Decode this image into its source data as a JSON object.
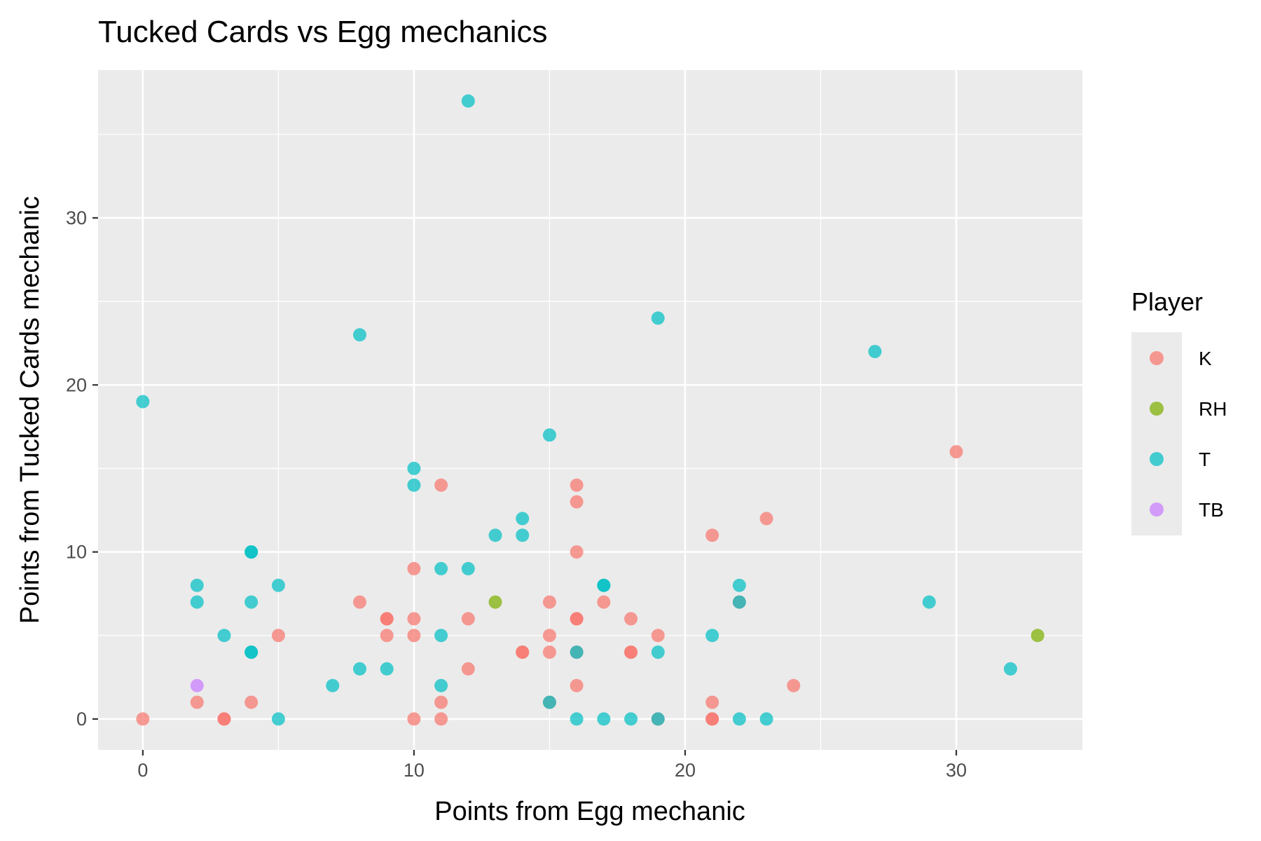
{
  "chart_data": {
    "type": "scatter",
    "title": "Tucked Cards vs Egg mechanics",
    "xlabel": "Points from Egg mechanic",
    "ylabel": "Points from Tucked Cards mechanic",
    "xlim": [
      -1.65,
      34.65
    ],
    "ylim": [
      -1.85,
      38.85
    ],
    "x_ticks": [
      0,
      10,
      20,
      30
    ],
    "y_ticks": [
      0,
      10,
      20,
      30
    ],
    "grid": true,
    "legend": {
      "title": "Player",
      "position": "right"
    },
    "series": [
      {
        "name": "K",
        "color": "#F8766D",
        "points": [
          [
            0,
            0
          ],
          [
            2,
            1
          ],
          [
            3,
            0
          ],
          [
            3,
            0
          ],
          [
            4,
            1
          ],
          [
            5,
            5
          ],
          [
            8,
            7
          ],
          [
            9,
            6
          ],
          [
            9,
            6
          ],
          [
            9,
            5
          ],
          [
            10,
            9
          ],
          [
            10,
            6
          ],
          [
            10,
            5
          ],
          [
            10,
            0
          ],
          [
            11,
            14
          ],
          [
            11,
            1
          ],
          [
            11,
            0
          ],
          [
            12,
            6
          ],
          [
            12,
            3
          ],
          [
            14,
            4
          ],
          [
            14,
            4
          ],
          [
            15,
            7
          ],
          [
            15,
            5
          ],
          [
            15,
            4
          ],
          [
            15,
            1
          ],
          [
            16,
            14
          ],
          [
            16,
            13
          ],
          [
            16,
            10
          ],
          [
            16,
            6
          ],
          [
            16,
            6
          ],
          [
            16,
            4
          ],
          [
            16,
            2
          ],
          [
            17,
            7
          ],
          [
            18,
            6
          ],
          [
            18,
            4
          ],
          [
            18,
            4
          ],
          [
            19,
            5
          ],
          [
            19,
            0
          ],
          [
            21,
            11
          ],
          [
            21,
            1
          ],
          [
            21,
            0
          ],
          [
            21,
            0
          ],
          [
            22,
            7
          ],
          [
            23,
            12
          ],
          [
            24,
            2
          ],
          [
            30,
            16
          ]
        ]
      },
      {
        "name": "RH",
        "color": "#7CAE00",
        "points": [
          [
            13,
            7
          ],
          [
            33,
            5
          ]
        ]
      },
      {
        "name": "T",
        "color": "#00BFC4",
        "points": [
          [
            0,
            19
          ],
          [
            2,
            8
          ],
          [
            2,
            7
          ],
          [
            3,
            5
          ],
          [
            4,
            10
          ],
          [
            4,
            10
          ],
          [
            4,
            7
          ],
          [
            4,
            4
          ],
          [
            4,
            4
          ],
          [
            5,
            8
          ],
          [
            5,
            0
          ],
          [
            7,
            2
          ],
          [
            8,
            23
          ],
          [
            8,
            3
          ],
          [
            9,
            3
          ],
          [
            10,
            15
          ],
          [
            10,
            14
          ],
          [
            11,
            9
          ],
          [
            11,
            5
          ],
          [
            11,
            2
          ],
          [
            12,
            37
          ],
          [
            12,
            9
          ],
          [
            13,
            11
          ],
          [
            14,
            12
          ],
          [
            14,
            11
          ],
          [
            15,
            17
          ],
          [
            15,
            1
          ],
          [
            16,
            4
          ],
          [
            16,
            0
          ],
          [
            17,
            8
          ],
          [
            17,
            8
          ],
          [
            17,
            0
          ],
          [
            18,
            0
          ],
          [
            19,
            24
          ],
          [
            19,
            4
          ],
          [
            19,
            0
          ],
          [
            21,
            5
          ],
          [
            22,
            8
          ],
          [
            22,
            7
          ],
          [
            22,
            0
          ],
          [
            23,
            0
          ],
          [
            27,
            22
          ],
          [
            29,
            7
          ],
          [
            32,
            3
          ]
        ]
      },
      {
        "name": "TB",
        "color": "#C77CFF",
        "points": [
          [
            2,
            2
          ]
        ]
      }
    ]
  }
}
